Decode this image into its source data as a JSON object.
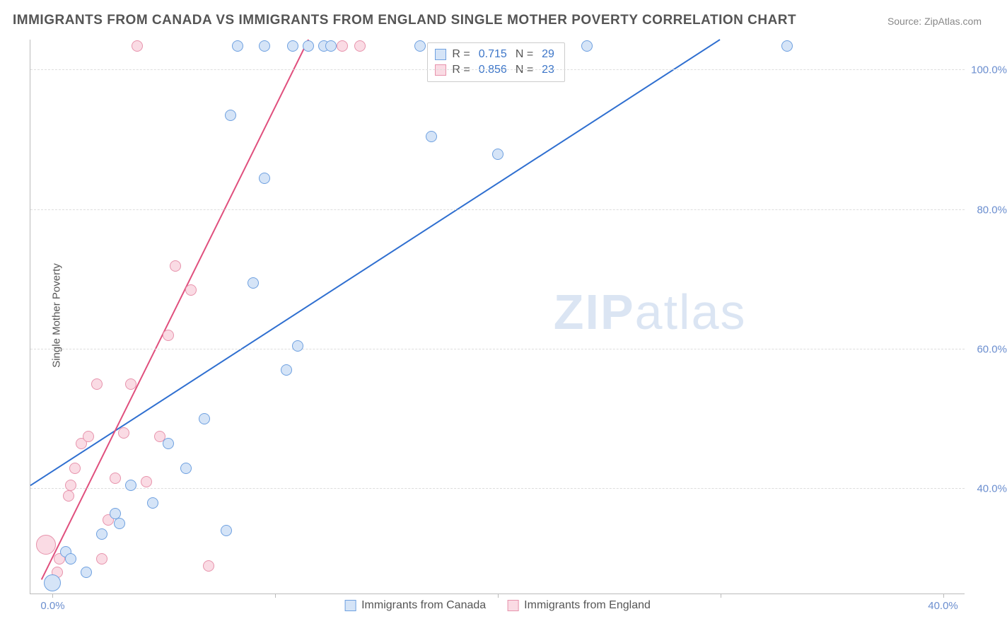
{
  "title": "IMMIGRANTS FROM CANADA VS IMMIGRANTS FROM ENGLAND SINGLE MOTHER POVERTY CORRELATION CHART",
  "source_label": "Source: ZipAtlas.com",
  "ylabel": "Single Mother Poverty",
  "watermark_bold": "ZIP",
  "watermark_rest": "atlas",
  "chart": {
    "type": "scatter",
    "background_color": "#ffffff",
    "grid_color": "#dddddd",
    "axis_color": "#bbbbbb",
    "tick_label_color": "#6b8ecf",
    "xlim": [
      -1.0,
      41.0
    ],
    "ylim": [
      25.0,
      104.5
    ],
    "xticks": [
      0,
      10,
      20,
      30,
      40
    ],
    "xtick_labels": [
      "0.0%",
      "",
      "",
      "",
      "40.0%"
    ],
    "yticks": [
      40,
      60,
      80,
      100
    ],
    "ytick_labels": [
      "40.0%",
      "60.0%",
      "80.0%",
      "100.0%"
    ],
    "marker_radius": 8,
    "marker_stroke_width": 1.2,
    "trend_line_width": 2
  },
  "series": {
    "canada": {
      "label": "Immigrants from Canada",
      "fill": "#d5e4f7",
      "stroke": "#6ea0e0",
      "trend_color": "#2f6fd0",
      "R_label": "R =",
      "R": "0.715",
      "N_label": "N =",
      "N": "29",
      "trend": {
        "x1": -1.0,
        "y1": 40.5,
        "x2": 30.0,
        "y2": 104.5
      },
      "points": [
        {
          "x": 0.0,
          "y": 26.5,
          "r": 12
        },
        {
          "x": 0.6,
          "y": 31.0
        },
        {
          "x": 0.8,
          "y": 30.0
        },
        {
          "x": 1.5,
          "y": 28.0
        },
        {
          "x": 2.2,
          "y": 33.5
        },
        {
          "x": 2.8,
          "y": 36.5
        },
        {
          "x": 3.0,
          "y": 35.0
        },
        {
          "x": 3.5,
          "y": 40.5
        },
        {
          "x": 4.5,
          "y": 38.0
        },
        {
          "x": 5.2,
          "y": 46.5
        },
        {
          "x": 6.0,
          "y": 43.0
        },
        {
          "x": 6.8,
          "y": 50.0
        },
        {
          "x": 7.8,
          "y": 34.0
        },
        {
          "x": 8.0,
          "y": 93.5
        },
        {
          "x": 8.3,
          "y": 103.5
        },
        {
          "x": 9.0,
          "y": 69.5
        },
        {
          "x": 9.5,
          "y": 84.5
        },
        {
          "x": 9.5,
          "y": 103.5
        },
        {
          "x": 10.5,
          "y": 57.0
        },
        {
          "x": 10.8,
          "y": 103.5
        },
        {
          "x": 11.0,
          "y": 60.5
        },
        {
          "x": 11.5,
          "y": 103.5
        },
        {
          "x": 12.2,
          "y": 103.5
        },
        {
          "x": 12.5,
          "y": 103.5
        },
        {
          "x": 16.5,
          "y": 103.5
        },
        {
          "x": 17.0,
          "y": 90.5
        },
        {
          "x": 20.0,
          "y": 88.0
        },
        {
          "x": 24.0,
          "y": 103.5
        },
        {
          "x": 33.0,
          "y": 103.5
        }
      ]
    },
    "england": {
      "label": "Immigrants from England",
      "fill": "#fadbe4",
      "stroke": "#e793ac",
      "trend_color": "#e04f7d",
      "R_label": "R =",
      "R": "0.856",
      "N_label": "N =",
      "N": "23",
      "trend": {
        "x1": -0.5,
        "y1": 27.0,
        "x2": 11.5,
        "y2": 104.5
      },
      "points": [
        {
          "x": -0.3,
          "y": 32.0,
          "r": 14
        },
        {
          "x": 0.2,
          "y": 28.0
        },
        {
          "x": 0.3,
          "y": 30.0
        },
        {
          "x": 0.7,
          "y": 39.0
        },
        {
          "x": 0.8,
          "y": 40.5
        },
        {
          "x": 1.0,
          "y": 43.0
        },
        {
          "x": 1.3,
          "y": 46.5
        },
        {
          "x": 1.6,
          "y": 47.5
        },
        {
          "x": 2.0,
          "y": 55.0
        },
        {
          "x": 2.2,
          "y": 30.0
        },
        {
          "x": 2.5,
          "y": 35.5
        },
        {
          "x": 2.8,
          "y": 41.5
        },
        {
          "x": 3.2,
          "y": 48.0
        },
        {
          "x": 3.5,
          "y": 55.0
        },
        {
          "x": 3.8,
          "y": 103.5
        },
        {
          "x": 4.2,
          "y": 41.0
        },
        {
          "x": 4.8,
          "y": 47.5
        },
        {
          "x": 5.2,
          "y": 62.0
        },
        {
          "x": 5.5,
          "y": 72.0
        },
        {
          "x": 6.2,
          "y": 68.5
        },
        {
          "x": 7.0,
          "y": 29.0
        },
        {
          "x": 13.0,
          "y": 103.5
        },
        {
          "x": 13.8,
          "y": 103.5
        }
      ]
    }
  }
}
